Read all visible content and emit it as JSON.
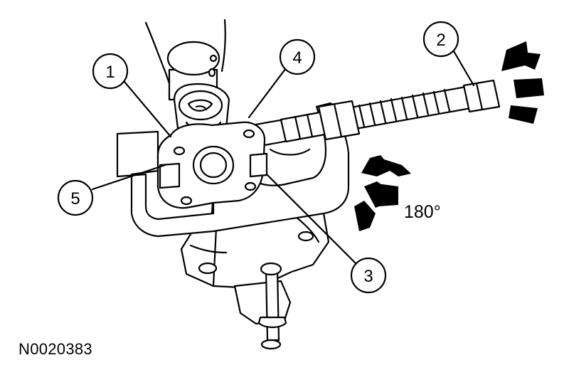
{
  "figure": {
    "id_label": "N0020383",
    "rotation_label": "180°",
    "callouts": [
      {
        "number": "1"
      },
      {
        "number": "2"
      },
      {
        "number": "3"
      },
      {
        "number": "4"
      },
      {
        "number": "5"
      }
    ]
  },
  "colors": {
    "line": "#000000",
    "background": "#ffffff"
  }
}
